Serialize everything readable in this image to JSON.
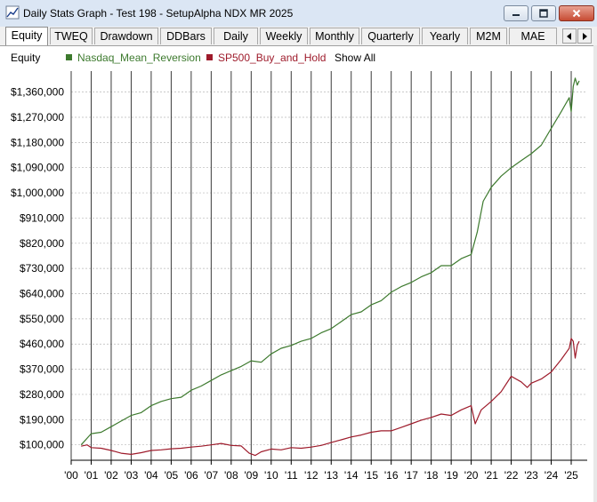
{
  "window": {
    "title": "Daily Stats Graph - Test 198 - SetupAlpha NDX MR 2025",
    "icon": "chart-icon",
    "buttons": [
      "minimize-icon",
      "maximize-icon",
      "close-icon"
    ]
  },
  "tabs": [
    {
      "label": "Equity",
      "active": true
    },
    {
      "label": "TWEQ"
    },
    {
      "label": "Drawdown"
    },
    {
      "label": "DDBars"
    },
    {
      "label": "Daily"
    },
    {
      "label": "Weekly"
    },
    {
      "label": "Monthly"
    },
    {
      "label": "Quarterly"
    },
    {
      "label": "Yearly"
    },
    {
      "label": "M2M"
    },
    {
      "label": "MAE"
    }
  ],
  "legend": {
    "label": "Equity",
    "show_all": "Show All",
    "series": [
      {
        "name": "Nasdaq_Mean_Reversion",
        "color": "#3d7a2e"
      },
      {
        "name": "SP500_Buy_and_Hold",
        "color": "#9e1b2b"
      }
    ]
  },
  "chart_data": {
    "type": "line",
    "y_tick_labels": [
      "$100,000",
      "$190,000",
      "$280,000",
      "$370,000",
      "$460,000",
      "$550,000",
      "$640,000",
      "$730,000",
      "$820,000",
      "$910,000",
      "$1,000,000",
      "$1,090,000",
      "$1,180,000",
      "$1,270,000",
      "$1,360,000"
    ],
    "x_tick_labels": [
      "'00",
      "'01",
      "'02",
      "'03",
      "'04",
      "'05",
      "'06",
      "'07",
      "'08",
      "'09",
      "'10",
      "'11",
      "'12",
      "'13",
      "'14",
      "'15",
      "'16",
      "'17",
      "'18",
      "'19",
      "'20",
      "'21",
      "'22",
      "'23",
      "'24",
      "'25"
    ],
    "xlim": [
      2000.0,
      2025.8
    ],
    "ylim": [
      45000,
      1435000
    ],
    "grid": true,
    "series": [
      {
        "name": "Nasdaq_Mean_Reversion",
        "color": "#3d7a2e",
        "x": [
          2000.5,
          2001.0,
          2001.5,
          2002.0,
          2002.5,
          2003.0,
          2003.5,
          2004.0,
          2004.5,
          2005.0,
          2005.5,
          2006.0,
          2006.5,
          2007.0,
          2007.5,
          2008.0,
          2008.5,
          2009.0,
          2009.5,
          2010.0,
          2010.5,
          2011.0,
          2011.5,
          2012.0,
          2012.5,
          2013.0,
          2013.5,
          2014.0,
          2014.5,
          2015.0,
          2015.5,
          2016.0,
          2016.5,
          2017.0,
          2017.5,
          2018.0,
          2018.5,
          2019.0,
          2019.5,
          2020.0,
          2020.3,
          2020.6,
          2021.0,
          2021.5,
          2022.0,
          2022.5,
          2023.0,
          2023.5,
          2024.0,
          2024.5,
          2024.9,
          2025.0,
          2025.1,
          2025.2,
          2025.3,
          2025.4
        ],
        "y": [
          100000,
          140000,
          145000,
          165000,
          185000,
          205000,
          215000,
          240000,
          255000,
          265000,
          270000,
          295000,
          310000,
          330000,
          350000,
          365000,
          380000,
          400000,
          395000,
          425000,
          445000,
          455000,
          470000,
          480000,
          500000,
          515000,
          540000,
          565000,
          575000,
          600000,
          615000,
          645000,
          665000,
          680000,
          700000,
          715000,
          740000,
          740000,
          765000,
          780000,
          860000,
          970000,
          1020000,
          1060000,
          1090000,
          1115000,
          1140000,
          1170000,
          1230000,
          1290000,
          1340000,
          1290000,
          1380000,
          1410000,
          1385000,
          1400000
        ]
      },
      {
        "name": "SP500_Buy_and_Hold",
        "color": "#9e1b2b",
        "x": [
          2000.5,
          2000.8,
          2001.0,
          2001.5,
          2002.0,
          2002.5,
          2003.0,
          2003.5,
          2004.0,
          2004.5,
          2005.0,
          2005.5,
          2006.0,
          2006.5,
          2007.0,
          2007.5,
          2008.0,
          2008.5,
          2008.9,
          2009.2,
          2009.5,
          2010.0,
          2010.5,
          2011.0,
          2011.5,
          2012.0,
          2012.5,
          2013.0,
          2013.5,
          2014.0,
          2014.5,
          2015.0,
          2015.5,
          2016.0,
          2016.5,
          2017.0,
          2017.5,
          2018.0,
          2018.5,
          2019.0,
          2019.5,
          2020.0,
          2020.2,
          2020.5,
          2021.0,
          2021.5,
          2022.0,
          2022.5,
          2022.8,
          2023.0,
          2023.5,
          2024.0,
          2024.5,
          2024.9,
          2025.0,
          2025.1,
          2025.2,
          2025.3,
          2025.4
        ],
        "y": [
          95000,
          100000,
          90000,
          88000,
          80000,
          70000,
          66000,
          72000,
          80000,
          82000,
          86000,
          88000,
          92000,
          95000,
          100000,
          105000,
          98000,
          96000,
          70000,
          62000,
          75000,
          85000,
          82000,
          90000,
          88000,
          92000,
          98000,
          108000,
          118000,
          128000,
          135000,
          145000,
          150000,
          150000,
          162000,
          175000,
          188000,
          198000,
          210000,
          205000,
          225000,
          240000,
          175000,
          225000,
          255000,
          290000,
          345000,
          325000,
          305000,
          320000,
          335000,
          360000,
          405000,
          445000,
          480000,
          470000,
          410000,
          455000,
          470000
        ]
      }
    ]
  }
}
